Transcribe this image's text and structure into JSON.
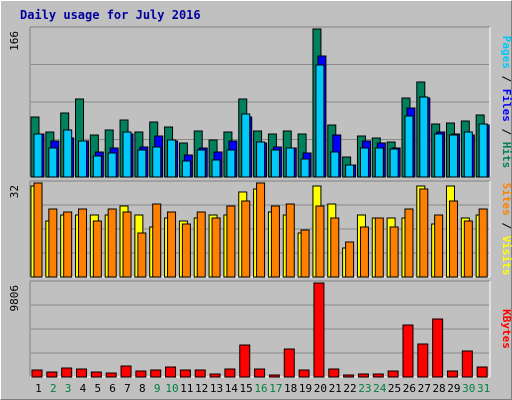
{
  "chart_data": {
    "type": "bar",
    "title": "Daily usage for July 2016",
    "categories": [
      "1",
      "2",
      "3",
      "4",
      "5",
      "6",
      "7",
      "8",
      "9",
      "10",
      "11",
      "12",
      "13",
      "14",
      "15",
      "16",
      "17",
      "18",
      "19",
      "20",
      "21",
      "22",
      "23",
      "24",
      "25",
      "26",
      "27",
      "28",
      "29",
      "30",
      "31"
    ],
    "weekend_days": [
      "2",
      "3",
      "9",
      "10",
      "16",
      "17",
      "23",
      "24",
      "30",
      "31"
    ],
    "colors": {
      "hits": "#00805c",
      "files": "#0000ff",
      "pages": "#00c8f8",
      "visits": "#ffff00",
      "sites": "#ff8000",
      "kbytes": "#ff0000",
      "weekday_label": "#000000",
      "weekend_label": "#008040",
      "title": "#0000a0"
    },
    "panels": [
      {
        "name": "requests",
        "ylabel_parts": [
          {
            "text": "Pages",
            "color": "#00c8f8"
          },
          {
            "text": " / ",
            "color": "#000000"
          },
          {
            "text": "Files",
            "color": "#0000ff"
          },
          {
            "text": " / ",
            "color": "#000000"
          },
          {
            "text": "Hits",
            "color": "#00805c"
          }
        ],
        "ymax_label": "166",
        "ymax": 166,
        "series": [
          {
            "name": "Hits",
            "color": "#00805c",
            "values": [
              67,
              50,
              72,
              87,
              47,
              53,
              64,
              50,
              62,
              56,
              38,
              52,
              42,
              51,
              88,
              52,
              48,
              52,
              48,
              166,
              58,
              22,
              46,
              44,
              39,
              89,
              106,
              59,
              61,
              63,
              70
            ]
          },
          {
            "name": "Files",
            "color": "#0000ff",
            "values": [
              48,
              40,
              44,
              40,
              28,
              33,
              48,
              34,
              46,
              40,
              25,
              33,
              28,
              40,
              67,
              38,
              34,
              33,
              27,
              136,
              47,
              14,
              40,
              38,
              32,
              77,
              89,
              50,
              48,
              47,
              58
            ]
          },
          {
            "name": "Pages",
            "color": "#00c8f8",
            "values": [
              48,
              33,
              53,
              40,
              23,
              27,
              51,
              30,
              34,
              41,
              18,
              30,
              19,
              30,
              71,
              39,
              30,
              33,
              20,
              126,
              28,
              13,
              33,
              33,
              31,
              68,
              90,
              48,
              47,
              50,
              59
            ]
          }
        ]
      },
      {
        "name": "visitors",
        "ylabel_parts": [
          {
            "text": "Sites",
            "color": "#ff8000"
          },
          {
            "text": " / ",
            "color": "#000000"
          },
          {
            "text": "Visits",
            "color": "#ffff00"
          }
        ],
        "ymax_label": "32",
        "ymax": 32,
        "series": [
          {
            "name": "Visits",
            "color": "#ffff00",
            "values": [
              31,
              19,
              21,
              21,
              21,
              21,
              24,
              21,
              17,
              20,
              19,
              20,
              21,
              21,
              29,
              30,
              22,
              21,
              15,
              31,
              25,
              10,
              21,
              20,
              20,
              20,
              31,
              18,
              31,
              20,
              21
            ]
          },
          {
            "name": "Sites",
            "color": "#ff8000",
            "values": [
              32,
              23,
              22,
              23,
              19,
              23,
              22,
              15,
              25,
              22,
              18,
              22,
              20,
              24,
              26,
              32,
              24,
              25,
              16,
              24,
              20,
              12,
              17,
              20,
              17,
              23,
              30,
              21,
              26,
              19,
              23
            ]
          }
        ]
      },
      {
        "name": "volume",
        "ylabel_parts": [
          {
            "text": "KBytes",
            "color": "#ff0000"
          }
        ],
        "ymax_label": "9806",
        "ymax": 9806,
        "series": [
          {
            "name": "KBytes",
            "color": "#ff0000",
            "values": [
              750,
              560,
              950,
              800,
              480,
              460,
              1150,
              620,
              700,
              1000,
              700,
              700,
              350,
              850,
              3300,
              800,
              200,
              2950,
              700,
              9806,
              850,
              230,
              360,
              350,
              650,
              5450,
              3450,
              6000,
              600,
              2700,
              1000
            ]
          }
        ]
      }
    ]
  }
}
